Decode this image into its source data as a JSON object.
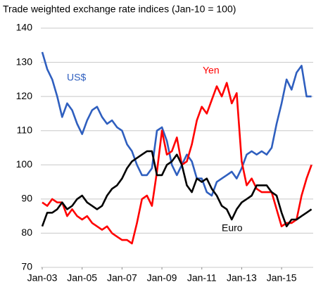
{
  "chart_data": {
    "type": "line",
    "title": "Trade weighted exchange rate indices (Jan-10 = 100)",
    "x": [
      "2003-01",
      "2003-04",
      "2003-07",
      "2003-10",
      "2004-01",
      "2004-04",
      "2004-07",
      "2004-10",
      "2005-01",
      "2005-04",
      "2005-07",
      "2005-10",
      "2006-01",
      "2006-04",
      "2006-07",
      "2006-10",
      "2007-01",
      "2007-04",
      "2007-07",
      "2007-10",
      "2008-01",
      "2008-04",
      "2008-07",
      "2008-10",
      "2009-01",
      "2009-04",
      "2009-07",
      "2009-10",
      "2010-01",
      "2010-04",
      "2010-07",
      "2010-10",
      "2011-01",
      "2011-04",
      "2011-07",
      "2011-10",
      "2012-01",
      "2012-04",
      "2012-07",
      "2012-10",
      "2013-01",
      "2013-04",
      "2013-07",
      "2013-10",
      "2014-01",
      "2014-04",
      "2014-07",
      "2014-10",
      "2015-01",
      "2015-04",
      "2015-07",
      "2015-10",
      "2016-01",
      "2016-04",
      "2016-07"
    ],
    "series": [
      {
        "name": "US$",
        "color": "#2f5fbf",
        "values": [
          133,
          128,
          125,
          120,
          114,
          118,
          116,
          112,
          109,
          113,
          116,
          117,
          114,
          112,
          113,
          111,
          110,
          106,
          104,
          100,
          97,
          97,
          99,
          110,
          111,
          107,
          100,
          97,
          100,
          103,
          101,
          96,
          96,
          92,
          91,
          95,
          96,
          97,
          98,
          96,
          99,
          103,
          104,
          103,
          104,
          103,
          105,
          112,
          118,
          125,
          122,
          127,
          129,
          120,
          120
        ]
      },
      {
        "name": "Yen",
        "color": "#ff0000",
        "values": [
          89,
          88,
          90,
          89,
          89,
          85,
          87,
          85,
          84,
          85,
          83,
          82,
          81,
          82,
          80,
          79,
          78,
          78,
          77,
          83,
          90,
          91,
          88,
          98,
          110,
          103,
          104,
          108,
          100,
          101,
          106,
          113,
          117,
          115,
          119,
          123,
          120,
          124,
          118,
          121,
          101,
          94,
          96,
          93,
          92,
          92,
          92,
          87,
          82,
          83,
          83,
          84,
          91,
          96,
          100
        ]
      },
      {
        "name": "Euro",
        "color": "#000000",
        "values": [
          82,
          86,
          86,
          87,
          89,
          87,
          88,
          90,
          91,
          89,
          88,
          87,
          88,
          91,
          93,
          94,
          96,
          99,
          101,
          102,
          103,
          104,
          104,
          97,
          97,
          100,
          101,
          103,
          100,
          94,
          92,
          96,
          95,
          96,
          93,
          91,
          88,
          87,
          84,
          87,
          89,
          90,
          91,
          94,
          94,
          94,
          92,
          91,
          86,
          82,
          84,
          84,
          85,
          86,
          87
        ]
      }
    ],
    "xlim": [
      "2003-01",
      "2016-08"
    ],
    "xticks": [
      {
        "value": "2003-01",
        "label": "Jan-03"
      },
      {
        "value": "2005-01",
        "label": "Jan-05"
      },
      {
        "value": "2007-01",
        "label": "Jan-07"
      },
      {
        "value": "2009-01",
        "label": "Jan-09"
      },
      {
        "value": "2011-01",
        "label": "Jan-11"
      },
      {
        "value": "2013-01",
        "label": "Jan-13"
      },
      {
        "value": "2015-01",
        "label": "Jan-15"
      }
    ],
    "ylim": [
      70,
      140
    ],
    "yticks": [
      70,
      80,
      90,
      100,
      110,
      120,
      130,
      140
    ],
    "grid": true
  }
}
